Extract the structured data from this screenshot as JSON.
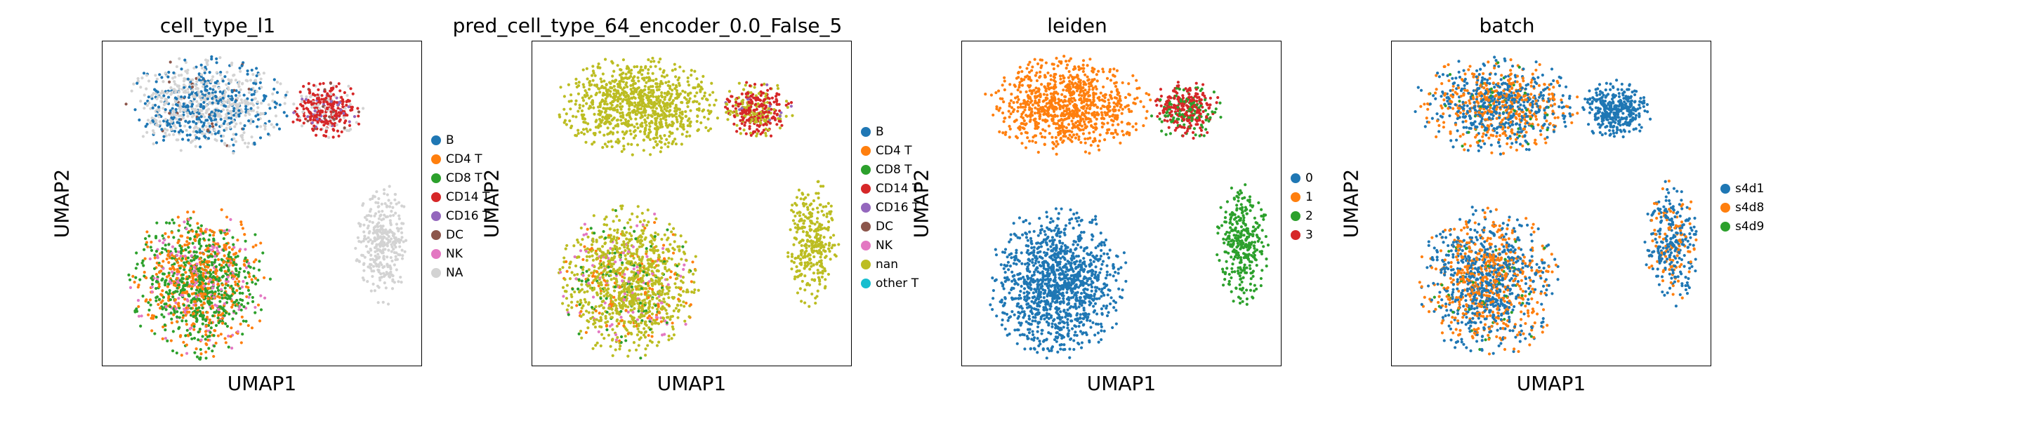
{
  "colors": {
    "B": "#1f77b4",
    "CD4 T": "#ff7f0e",
    "CD8 T": "#2ca02c",
    "CD14 T": "#d62728",
    "CD16 T": "#9467bd",
    "DC": "#8c564b",
    "NK": "#e377c2",
    "NA": "#d3d3d3",
    "nan": "#bcbd22",
    "other T": "#17becf",
    "0": "#1f77b4",
    "1": "#ff7f0e",
    "2": "#2ca02c",
    "3": "#d62728",
    "s4d1": "#1f77b4",
    "s4d8": "#ff7f0e",
    "s4d9": "#2ca02c"
  },
  "chart_data": [
    {
      "type": "scatter",
      "title": "cell_type_l1",
      "xlabel": "UMAP1",
      "ylabel": "UMAP2",
      "legend": [
        "B",
        "CD4 T",
        "CD8 T",
        "CD14 T",
        "CD16 T",
        "DC",
        "NK",
        "NA"
      ],
      "legend_position": "right",
      "grid": false,
      "clusters": [
        {
          "region": "top-left",
          "mix": [
            [
              "NA",
              0.55
            ],
            [
              "B",
              0.42
            ],
            [
              "DC",
              0.03
            ]
          ]
        },
        {
          "region": "top-right",
          "mix": [
            [
              "CD14 T",
              0.62
            ],
            [
              "NA",
              0.2
            ],
            [
              "CD16 T",
              0.12
            ],
            [
              "DC",
              0.06
            ]
          ]
        },
        {
          "region": "right",
          "mix": [
            [
              "NA",
              1.0
            ]
          ]
        },
        {
          "region": "bottom-left",
          "mix": [
            [
              "CD8 T",
              0.5
            ],
            [
              "CD4 T",
              0.35
            ],
            [
              "NK",
              0.15
            ]
          ]
        }
      ]
    },
    {
      "type": "scatter",
      "title": "pred_cell_type_64_encoder_0.0_False_5",
      "xlabel": "UMAP1",
      "ylabel": "UMAP2",
      "legend": [
        "B",
        "CD4 T",
        "CD8 T",
        "CD14 T",
        "CD16 T",
        "DC",
        "NK",
        "nan",
        "other T"
      ],
      "legend_position": "right",
      "grid": false,
      "clusters": [
        {
          "region": "top-left",
          "mix": [
            [
              "nan",
              1.0
            ]
          ]
        },
        {
          "region": "top-right",
          "mix": [
            [
              "CD14 T",
              0.62
            ],
            [
              "nan",
              0.33
            ],
            [
              "CD16 T",
              0.05
            ]
          ]
        },
        {
          "region": "right",
          "mix": [
            [
              "nan",
              1.0
            ]
          ]
        },
        {
          "region": "bottom-left",
          "mix": [
            [
              "nan",
              0.72
            ],
            [
              "CD4 T",
              0.12
            ],
            [
              "CD8 T",
              0.08
            ],
            [
              "NK",
              0.08
            ]
          ]
        }
      ]
    },
    {
      "type": "scatter",
      "title": "leiden",
      "xlabel": "UMAP1",
      "ylabel": "UMAP2",
      "legend": [
        "0",
        "1",
        "2",
        "3"
      ],
      "legend_position": "right",
      "grid": false,
      "clusters": [
        {
          "region": "top-left",
          "mix": [
            [
              "1",
              1.0
            ]
          ]
        },
        {
          "region": "top-right",
          "mix": [
            [
              "3",
              0.7
            ],
            [
              "2",
              0.3
            ]
          ]
        },
        {
          "region": "right",
          "mix": [
            [
              "2",
              1.0
            ]
          ]
        },
        {
          "region": "bottom-left",
          "mix": [
            [
              "0",
              1.0
            ]
          ]
        }
      ]
    },
    {
      "type": "scatter",
      "title": "batch",
      "xlabel": "UMAP1",
      "ylabel": "UMAP2",
      "legend": [
        "s4d1",
        "s4d8",
        "s4d9"
      ],
      "legend_position": "right",
      "grid": false,
      "clusters": [
        {
          "region": "top-left",
          "mix": [
            [
              "s4d1",
              0.55
            ],
            [
              "s4d8",
              0.4
            ],
            [
              "s4d9",
              0.05
            ]
          ]
        },
        {
          "region": "top-right",
          "mix": [
            [
              "s4d1",
              1.0
            ]
          ]
        },
        {
          "region": "right",
          "mix": [
            [
              "s4d1",
              0.7
            ],
            [
              "s4d8",
              0.3
            ]
          ]
        },
        {
          "region": "bottom-left",
          "mix": [
            [
              "s4d1",
              0.55
            ],
            [
              "s4d8",
              0.42
            ],
            [
              "s4d9",
              0.03
            ]
          ]
        }
      ]
    }
  ]
}
